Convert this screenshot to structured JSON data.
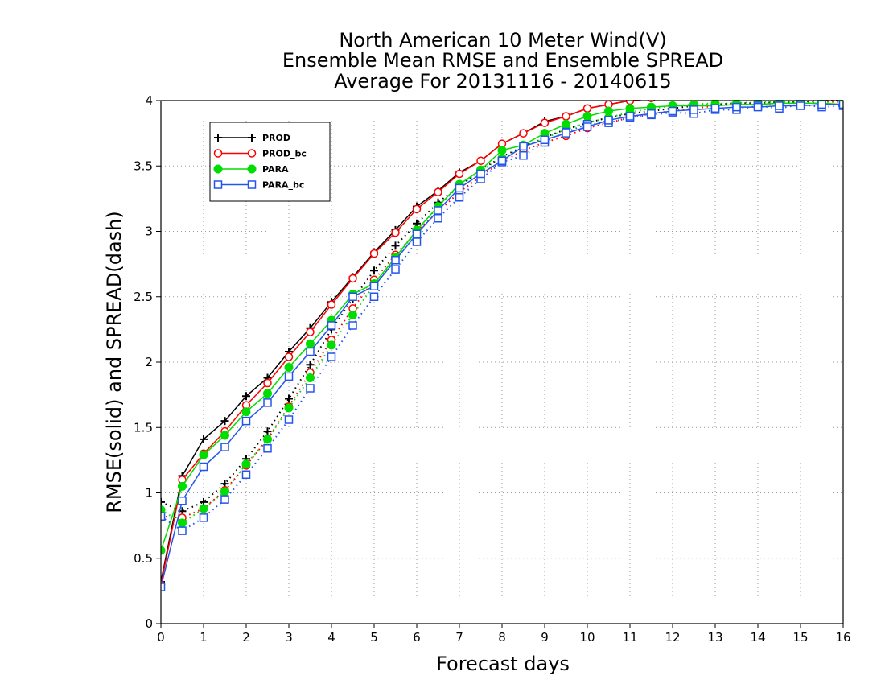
{
  "chart_data": {
    "type": "line",
    "title_lines": [
      "North American 10 Meter Wind(V)",
      "Ensemble Mean RMSE and Ensemble SPREAD",
      "Average For 20131116 - 20140615"
    ],
    "xlabel": "Forecast days",
    "ylabel": "RMSE(solid) and SPREAD(dash)",
    "xlim": [
      0,
      16
    ],
    "ylim": [
      0,
      4
    ],
    "xticks": [
      "0",
      "1",
      "2",
      "3",
      "4",
      "5",
      "6",
      "7",
      "8",
      "9",
      "10",
      "11",
      "12",
      "13",
      "14",
      "15",
      "16"
    ],
    "yticks": [
      "0",
      "0.5",
      "1",
      "1.5",
      "2",
      "2.5",
      "3",
      "3.5",
      "4"
    ],
    "grid": true,
    "legend_position": "top-left",
    "x": [
      0,
      0.5,
      1,
      1.5,
      2,
      2.5,
      3,
      3.5,
      4,
      4.5,
      5,
      5.5,
      6,
      6.5,
      7,
      7.5,
      8,
      8.5,
      9,
      9.5,
      10,
      10.5,
      11,
      11.5,
      12,
      12.5,
      13,
      13.5,
      14,
      14.5,
      15,
      15.5,
      16
    ],
    "series": [
      {
        "name": "PROD",
        "color": "#000000",
        "marker": "plus",
        "rmse": [
          0.32,
          1.13,
          1.41,
          1.55,
          1.74,
          1.88,
          2.08,
          2.26,
          2.46,
          2.65,
          2.84,
          3.01,
          3.19,
          3.31,
          3.45,
          3.54,
          3.67,
          3.75,
          3.84,
          3.88,
          3.94,
          3.97,
          4.0,
          4.02,
          4.04,
          4.05,
          4.06,
          4.07,
          4.07,
          4.08,
          4.08,
          4.08,
          4.08
        ],
        "spread": [
          0.93,
          0.86,
          0.93,
          1.07,
          1.26,
          1.47,
          1.72,
          1.98,
          2.25,
          2.48,
          2.7,
          2.89,
          3.06,
          3.22,
          3.35,
          3.47,
          3.57,
          3.65,
          3.72,
          3.78,
          3.83,
          3.87,
          3.9,
          3.92,
          3.94,
          3.96,
          3.97,
          3.98,
          3.98,
          3.99,
          3.99,
          4.0,
          4.0
        ]
      },
      {
        "name": "PROD_bc",
        "color": "#ff0000",
        "marker": "open-circle",
        "rmse": [
          0.3,
          1.1,
          1.3,
          1.47,
          1.67,
          1.84,
          2.04,
          2.23,
          2.44,
          2.64,
          2.83,
          2.99,
          3.17,
          3.3,
          3.44,
          3.54,
          3.67,
          3.75,
          3.83,
          3.88,
          3.94,
          3.97,
          4.0,
          4.02,
          4.04,
          4.05,
          4.06,
          4.07,
          4.07,
          4.08,
          4.08,
          4.08,
          4.08
        ],
        "spread": [
          0.82,
          0.81,
          0.88,
          1.02,
          1.21,
          1.41,
          1.66,
          1.92,
          2.17,
          2.41,
          2.63,
          2.82,
          3.0,
          3.15,
          3.3,
          3.42,
          3.53,
          3.62,
          3.68,
          3.73,
          3.79,
          3.83,
          3.87,
          3.9,
          3.92,
          3.94,
          3.96,
          3.97,
          3.97,
          3.98,
          3.98,
          3.99,
          3.99
        ]
      },
      {
        "name": "PARA",
        "color": "#00dd00",
        "marker": "filled-circle",
        "rmse": [
          0.56,
          1.05,
          1.29,
          1.44,
          1.62,
          1.76,
          1.96,
          2.14,
          2.32,
          2.52,
          2.6,
          2.8,
          3.01,
          3.19,
          3.36,
          3.47,
          3.62,
          3.66,
          3.75,
          3.82,
          3.88,
          3.92,
          3.94,
          3.95,
          3.96,
          3.96,
          3.96,
          3.97,
          3.97,
          3.98,
          3.98,
          3.98,
          3.97
        ],
        "spread": [
          0.87,
          0.77,
          0.88,
          1.01,
          1.22,
          1.41,
          1.65,
          1.88,
          2.13,
          2.36,
          2.59,
          2.8,
          3.0,
          3.19,
          3.35,
          3.46,
          3.56,
          3.65,
          3.71,
          3.78,
          3.83,
          3.87,
          3.91,
          3.94,
          3.96,
          3.97,
          3.98,
          3.98,
          3.99,
          3.99,
          4.0,
          4.0,
          4.0
        ]
      },
      {
        "name": "PARA_bc",
        "color": "#2255ee",
        "marker": "open-square",
        "rmse": [
          0.28,
          0.94,
          1.2,
          1.35,
          1.55,
          1.69,
          1.89,
          2.08,
          2.28,
          2.5,
          2.58,
          2.78,
          2.98,
          3.16,
          3.33,
          3.44,
          3.54,
          3.65,
          3.7,
          3.75,
          3.8,
          3.85,
          3.88,
          3.9,
          3.92,
          3.93,
          3.94,
          3.95,
          3.95,
          3.96,
          3.96,
          3.97,
          3.97
        ],
        "spread": [
          0.82,
          0.71,
          0.81,
          0.95,
          1.14,
          1.34,
          1.56,
          1.8,
          2.04,
          2.28,
          2.5,
          2.71,
          2.92,
          3.1,
          3.26,
          3.4,
          3.53,
          3.58,
          3.68,
          3.76,
          3.82,
          3.83,
          3.87,
          3.89,
          3.91,
          3.9,
          3.93,
          3.93,
          3.96,
          3.94,
          3.97,
          3.95,
          3.96
        ]
      }
    ]
  }
}
